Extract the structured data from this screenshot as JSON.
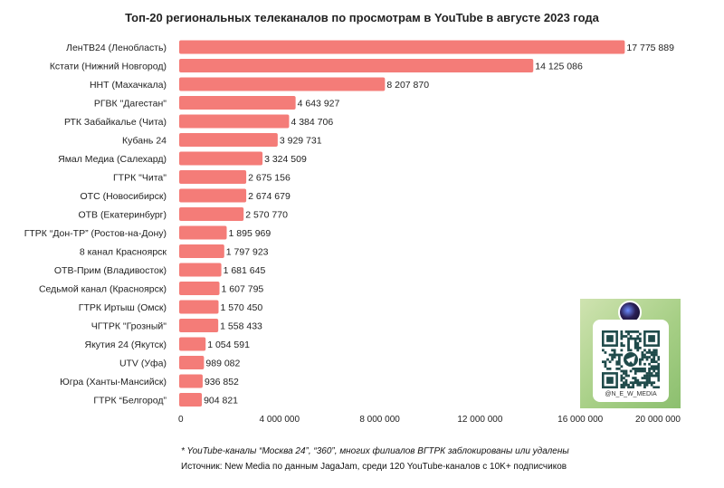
{
  "chart_data": {
    "type": "bar",
    "orientation": "horizontal",
    "title": "Топ-20 региональных телеканалов по просмотрам в YouTube в августе 2023 года",
    "categories": [
      "ЛенТВ24 (Ленобласть)",
      "Кстати (Нижний Новгород)",
      "ННТ (Махачкала)",
      "РГВК \"Дагестан\"",
      "РТК Забайкалье (Чита)",
      "Кубань 24",
      "Ямал Медиа (Салехард)",
      "ГТРК \"Чита\"",
      "ОТС (Новосибирск)",
      "ОТВ (Екатеринбург)",
      "ГТРК “Дон-ТР” (Ростов-на-Дону)",
      "8 канал Красноярск",
      "ОТВ-Прим (Владивосток)",
      "Седьмой канал (Красноярск)",
      "ГТРК Иртыш (Омск)",
      "ЧГТРК \"Грозный\"",
      "Якутия 24 (Якутск)",
      "UTV (Уфа)",
      "Югра (Ханты-Мансийск)",
      "ГТРК “Белгород”"
    ],
    "values": [
      17775889,
      14125086,
      8207870,
      4643927,
      4384706,
      3929731,
      3324509,
      2675156,
      2674679,
      2570770,
      1895969,
      1797923,
      1681645,
      1607795,
      1570450,
      1558433,
      1054591,
      989082,
      936852,
      904821
    ],
    "value_labels": [
      "17 775 889",
      "14 125 086",
      "8 207 870",
      "4 643 927",
      "4 384 706",
      "3 929 731",
      "3 324 509",
      "2 675 156",
      "2 674 679",
      "2 570 770",
      "1 895 969",
      "1 797 923",
      "1 681 645",
      "1 607 795",
      "1 570 450",
      "1 558 433",
      "1 054 591",
      "989 082",
      "936 852",
      "904 821"
    ],
    "xlim": [
      0,
      20000000
    ],
    "xticks": [
      0,
      4000000,
      8000000,
      12000000,
      16000000,
      20000000
    ],
    "xtick_labels": [
      "0",
      "4 000 000",
      "8 000 000",
      "12 000 000",
      "16 000 000",
      "20 000 000"
    ],
    "xlabel": "",
    "ylabel": "",
    "grid": false,
    "legend": "none",
    "bar_color": "#f47c78"
  },
  "footnotes": {
    "note": "* YouTube-каналы “Москва 24”, “360”, многих филиалов ВГТРК заблокированы или удалены",
    "source": "Источник: New Media по данным JagaJam, среди 120 YouTube-каналов с 10K+ подписчиков"
  },
  "qr_card": {
    "handle": "@N_E_W_MEDIA"
  }
}
